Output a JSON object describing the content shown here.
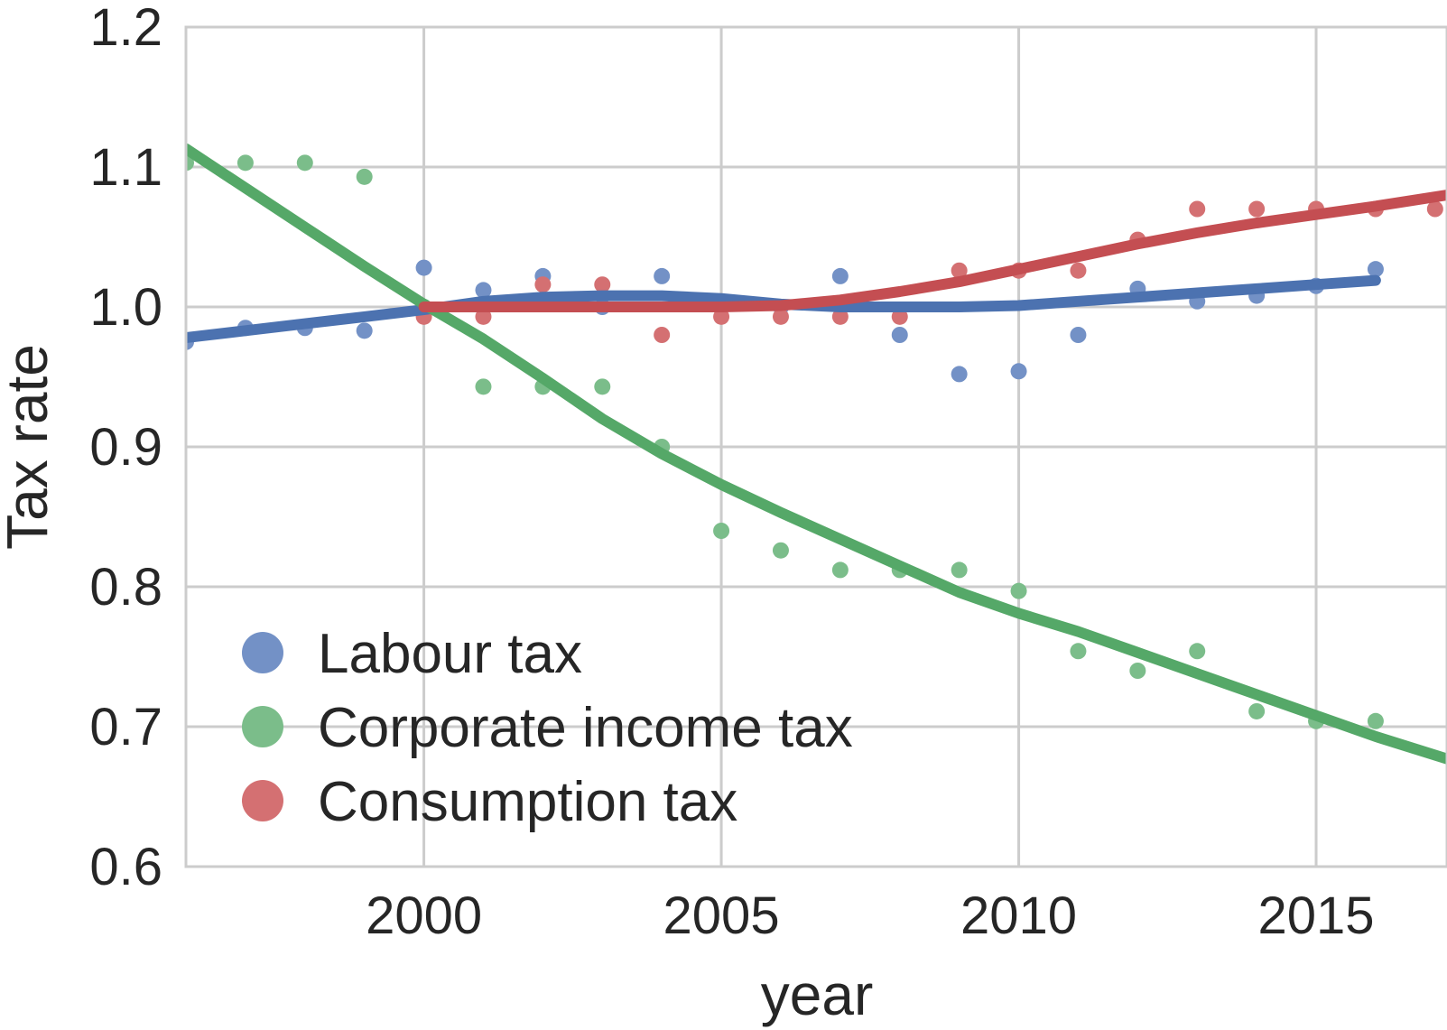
{
  "chart_data": {
    "type": "scatter",
    "title": "",
    "xlabel": "year",
    "ylabel": "Tax rate",
    "xlim": [
      1996,
      2017.2
    ],
    "ylim": [
      0.6,
      1.2
    ],
    "xticks": [
      2000,
      2005,
      2010,
      2015
    ],
    "xtick_labels": [
      "2000",
      "2005",
      "2010",
      "2015"
    ],
    "yticks": [
      0.6,
      0.7,
      0.8,
      0.9,
      1.0,
      1.1,
      1.2
    ],
    "ytick_labels": [
      "0.6",
      "0.7",
      "0.8",
      "0.9",
      "1.0",
      "1.1",
      "1.2"
    ],
    "grid": true,
    "legend_position": "bottom-left",
    "series": [
      {
        "name": "Labour tax",
        "color": "#4c72b0",
        "marker_color": "#7391c6",
        "points": {
          "x": [
            1996,
            1997,
            1998,
            1999,
            2000,
            2001,
            2002,
            2003,
            2004,
            2005,
            2006,
            2007,
            2008,
            2009,
            2010,
            2011,
            2012,
            2013,
            2014,
            2015,
            2016
          ],
          "y": [
            0.975,
            0.985,
            0.985,
            0.983,
            1.028,
            1.012,
            1.022,
            1.0,
            1.022,
            1.0,
            1.0,
            1.022,
            0.98,
            0.952,
            0.954,
            0.98,
            1.013,
            1.004,
            1.008,
            1.015,
            1.027
          ]
        },
        "fit": {
          "x": [
            1996,
            1997,
            1998,
            1999,
            2000,
            2001,
            2002,
            2003,
            2004,
            2005,
            2006,
            2007,
            2008,
            2009,
            2010,
            2011,
            2012,
            2013,
            2014,
            2015,
            2016
          ],
          "y": [
            0.978,
            0.983,
            0.988,
            0.993,
            0.998,
            1.004,
            1.007,
            1.008,
            1.008,
            1.006,
            1.002,
            1.0,
            1.0,
            1.0,
            1.001,
            1.004,
            1.007,
            1.01,
            1.013,
            1.016,
            1.019
          ]
        }
      },
      {
        "name": "Corporate income tax",
        "color": "#55a868",
        "marker_color": "#7bbd8a",
        "points": {
          "x": [
            1996,
            1997,
            1998,
            1999,
            2000,
            2001,
            2002,
            2003,
            2004,
            2005,
            2006,
            2007,
            2008,
            2009,
            2010,
            2011,
            2012,
            2013,
            2014,
            2015,
            2016
          ],
          "y": [
            1.103,
            1.103,
            1.103,
            1.093,
            1.0,
            0.943,
            0.943,
            0.943,
            0.9,
            0.84,
            0.826,
            0.812,
            0.812,
            0.812,
            0.797,
            0.754,
            0.74,
            0.754,
            0.711,
            0.704,
            0.704
          ]
        },
        "fit": {
          "x": [
            1996,
            1997,
            1998,
            1999,
            2000,
            2001,
            2002,
            2003,
            2004,
            2005,
            2006,
            2007,
            2008,
            2009,
            2010,
            2011,
            2012,
            2013,
            2014,
            2015,
            2016,
            2017.2
          ],
          "y": [
            1.113,
            1.085,
            1.057,
            1.029,
            1.002,
            0.977,
            0.949,
            0.92,
            0.895,
            0.873,
            0.853,
            0.834,
            0.815,
            0.796,
            0.781,
            0.768,
            0.753,
            0.738,
            0.723,
            0.708,
            0.693,
            0.677
          ]
        }
      },
      {
        "name": "Consumption tax",
        "color": "#c44e52",
        "marker_color": "#d47072",
        "points": {
          "x": [
            2000,
            2001,
            2002,
            2003,
            2004,
            2005,
            2006,
            2007,
            2008,
            2009,
            2010,
            2011,
            2012,
            2013,
            2014,
            2015,
            2016,
            2017
          ],
          "y": [
            0.993,
            0.993,
            1.016,
            1.016,
            0.98,
            0.993,
            0.993,
            0.993,
            0.993,
            1.026,
            1.026,
            1.026,
            1.048,
            1.07,
            1.07,
            1.07,
            1.07,
            1.07
          ]
        },
        "fit": {
          "x": [
            2000,
            2001,
            2002,
            2003,
            2004,
            2005,
            2006,
            2007,
            2008,
            2009,
            2010,
            2011,
            2012,
            2013,
            2014,
            2015,
            2016,
            2017.2
          ],
          "y": [
            1.0,
            1.0,
            1.0,
            1.0,
            1.0,
            1.0,
            1.001,
            1.005,
            1.011,
            1.018,
            1.027,
            1.036,
            1.045,
            1.053,
            1.06,
            1.066,
            1.072,
            1.08
          ]
        }
      }
    ]
  }
}
